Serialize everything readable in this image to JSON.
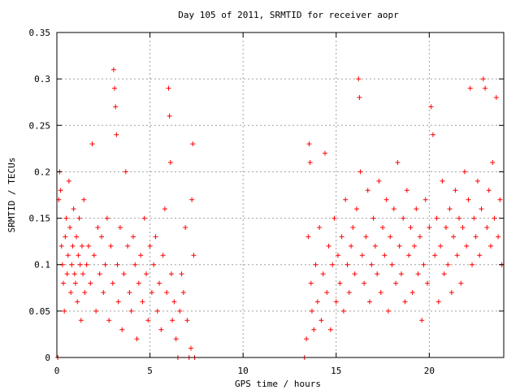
{
  "chart_data": {
    "type": "scatter",
    "title": "Day 105 of 2011, SRMTID for receiver aopr",
    "xlabel": "GPS time / hours",
    "ylabel": "SRMTID / TECUs",
    "xlim": [
      0,
      24
    ],
    "ylim": [
      0,
      0.35
    ],
    "xticks": [
      0,
      5,
      10,
      15,
      20
    ],
    "yticks": [
      0,
      0.05,
      0.1,
      0.15,
      0.2,
      0.25,
      0.3,
      0.35
    ],
    "ytick_labels": [
      "0",
      "0.05",
      "0.1",
      "0.15",
      "0.2",
      "0.25",
      "0.3",
      "0.35"
    ],
    "xtick_labels": [
      "0",
      "5",
      "10",
      "15",
      "20"
    ],
    "grid": true,
    "marker": "+",
    "color": "#ff0000",
    "series": [
      {
        "points": [
          [
            0.05,
            0.0
          ],
          [
            0.1,
            0.17
          ],
          [
            0.15,
            0.2
          ],
          [
            0.2,
            0.18
          ],
          [
            0.25,
            0.12
          ],
          [
            0.3,
            0.1
          ],
          [
            0.35,
            0.08
          ],
          [
            0.4,
            0.05
          ],
          [
            0.45,
            0.13
          ],
          [
            0.5,
            0.15
          ],
          [
            0.55,
            0.09
          ],
          [
            0.6,
            0.11
          ],
          [
            0.65,
            0.19
          ],
          [
            0.7,
            0.14
          ],
          [
            0.75,
            0.07
          ],
          [
            0.8,
            0.1
          ],
          [
            0.85,
            0.12
          ],
          [
            0.9,
            0.16
          ],
          [
            0.95,
            0.09
          ],
          [
            1.0,
            0.08
          ],
          [
            1.05,
            0.13
          ],
          [
            1.1,
            0.06
          ],
          [
            1.15,
            0.11
          ],
          [
            1.2,
            0.15
          ],
          [
            1.25,
            0.1
          ],
          [
            1.3,
            0.04
          ],
          [
            1.35,
            0.12
          ],
          [
            1.4,
            0.09
          ],
          [
            1.45,
            0.17
          ],
          [
            1.5,
            0.07
          ],
          [
            1.6,
            0.1
          ],
          [
            1.7,
            0.12
          ],
          [
            1.8,
            0.08
          ],
          [
            1.9,
            0.23
          ],
          [
            2.0,
            0.11
          ],
          [
            2.1,
            0.05
          ],
          [
            2.2,
            0.14
          ],
          [
            2.3,
            0.09
          ],
          [
            2.4,
            0.13
          ],
          [
            2.5,
            0.07
          ],
          [
            2.6,
            0.1
          ],
          [
            2.7,
            0.15
          ],
          [
            2.8,
            0.04
          ],
          [
            2.9,
            0.12
          ],
          [
            3.0,
            0.08
          ],
          [
            3.05,
            0.31
          ],
          [
            3.1,
            0.29
          ],
          [
            3.15,
            0.27
          ],
          [
            3.2,
            0.24
          ],
          [
            3.25,
            0.1
          ],
          [
            3.3,
            0.06
          ],
          [
            3.4,
            0.14
          ],
          [
            3.5,
            0.03
          ],
          [
            3.6,
            0.09
          ],
          [
            3.7,
            0.2
          ],
          [
            3.8,
            0.12
          ],
          [
            3.9,
            0.07
          ],
          [
            4.0,
            0.05
          ],
          [
            4.1,
            0.13
          ],
          [
            4.2,
            0.1
          ],
          [
            4.3,
            0.02
          ],
          [
            4.4,
            0.08
          ],
          [
            4.5,
            0.11
          ],
          [
            4.6,
            0.06
          ],
          [
            4.7,
            0.15
          ],
          [
            4.8,
            0.09
          ],
          [
            4.9,
            0.04
          ],
          [
            5.0,
            0.12
          ],
          [
            5.1,
            0.07
          ],
          [
            5.2,
            0.1
          ],
          [
            5.3,
            0.13
          ],
          [
            5.4,
            0.05
          ],
          [
            5.5,
            0.08
          ],
          [
            5.6,
            0.03
          ],
          [
            5.7,
            0.11
          ],
          [
            5.8,
            0.16
          ],
          [
            5.9,
            0.07
          ],
          [
            6.0,
            0.29
          ],
          [
            6.05,
            0.26
          ],
          [
            6.1,
            0.21
          ],
          [
            6.15,
            0.09
          ],
          [
            6.2,
            0.04
          ],
          [
            6.3,
            0.06
          ],
          [
            6.4,
            0.02
          ],
          [
            6.5,
            0.0
          ],
          [
            6.6,
            0.05
          ],
          [
            6.7,
            0.09
          ],
          [
            6.8,
            0.07
          ],
          [
            6.9,
            0.14
          ],
          [
            7.0,
            0.04
          ],
          [
            7.1,
            0.0
          ],
          [
            7.2,
            0.01
          ],
          [
            7.25,
            0.17
          ],
          [
            7.3,
            0.23
          ],
          [
            7.35,
            0.11
          ],
          [
            7.4,
            0.0
          ],
          [
            13.3,
            0.0
          ],
          [
            13.4,
            0.02
          ],
          [
            13.5,
            0.13
          ],
          [
            13.55,
            0.23
          ],
          [
            13.6,
            0.21
          ],
          [
            13.65,
            0.08
          ],
          [
            13.7,
            0.05
          ],
          [
            13.8,
            0.03
          ],
          [
            13.9,
            0.1
          ],
          [
            14.0,
            0.06
          ],
          [
            14.1,
            0.14
          ],
          [
            14.2,
            0.04
          ],
          [
            14.3,
            0.09
          ],
          [
            14.4,
            0.22
          ],
          [
            14.5,
            0.07
          ],
          [
            14.6,
            0.12
          ],
          [
            14.7,
            0.03
          ],
          [
            14.8,
            0.1
          ],
          [
            14.9,
            0.15
          ],
          [
            15.0,
            0.06
          ],
          [
            15.1,
            0.11
          ],
          [
            15.2,
            0.08
          ],
          [
            15.3,
            0.13
          ],
          [
            15.4,
            0.05
          ],
          [
            15.5,
            0.17
          ],
          [
            15.6,
            0.1
          ],
          [
            15.7,
            0.07
          ],
          [
            15.8,
            0.12
          ],
          [
            15.9,
            0.14
          ],
          [
            16.0,
            0.09
          ],
          [
            16.1,
            0.16
          ],
          [
            16.2,
            0.3
          ],
          [
            16.25,
            0.28
          ],
          [
            16.3,
            0.2
          ],
          [
            16.4,
            0.11
          ],
          [
            16.5,
            0.08
          ],
          [
            16.6,
            0.13
          ],
          [
            16.7,
            0.18
          ],
          [
            16.8,
            0.06
          ],
          [
            16.9,
            0.1
          ],
          [
            17.0,
            0.15
          ],
          [
            17.1,
            0.12
          ],
          [
            17.2,
            0.09
          ],
          [
            17.3,
            0.19
          ],
          [
            17.4,
            0.07
          ],
          [
            17.5,
            0.14
          ],
          [
            17.6,
            0.11
          ],
          [
            17.7,
            0.17
          ],
          [
            17.8,
            0.05
          ],
          [
            17.9,
            0.13
          ],
          [
            18.0,
            0.1
          ],
          [
            18.1,
            0.16
          ],
          [
            18.2,
            0.08
          ],
          [
            18.3,
            0.21
          ],
          [
            18.4,
            0.12
          ],
          [
            18.5,
            0.09
          ],
          [
            18.6,
            0.15
          ],
          [
            18.7,
            0.06
          ],
          [
            18.8,
            0.18
          ],
          [
            18.9,
            0.11
          ],
          [
            19.0,
            0.14
          ],
          [
            19.1,
            0.07
          ],
          [
            19.2,
            0.12
          ],
          [
            19.3,
            0.16
          ],
          [
            19.4,
            0.09
          ],
          [
            19.5,
            0.13
          ],
          [
            19.6,
            0.04
          ],
          [
            19.7,
            0.1
          ],
          [
            19.8,
            0.17
          ],
          [
            19.9,
            0.08
          ],
          [
            20.0,
            0.14
          ],
          [
            20.1,
            0.27
          ],
          [
            20.2,
            0.24
          ],
          [
            20.3,
            0.11
          ],
          [
            20.4,
            0.15
          ],
          [
            20.5,
            0.06
          ],
          [
            20.6,
            0.12
          ],
          [
            20.7,
            0.19
          ],
          [
            20.8,
            0.09
          ],
          [
            20.9,
            0.14
          ],
          [
            21.0,
            0.1
          ],
          [
            21.1,
            0.16
          ],
          [
            21.2,
            0.07
          ],
          [
            21.3,
            0.13
          ],
          [
            21.4,
            0.18
          ],
          [
            21.5,
            0.11
          ],
          [
            21.6,
            0.15
          ],
          [
            21.7,
            0.08
          ],
          [
            21.8,
            0.14
          ],
          [
            21.9,
            0.2
          ],
          [
            22.0,
            0.12
          ],
          [
            22.1,
            0.17
          ],
          [
            22.2,
            0.29
          ],
          [
            22.3,
            0.1
          ],
          [
            22.4,
            0.15
          ],
          [
            22.5,
            0.13
          ],
          [
            22.6,
            0.19
          ],
          [
            22.7,
            0.11
          ],
          [
            22.8,
            0.16
          ],
          [
            22.9,
            0.3
          ],
          [
            23.0,
            0.29
          ],
          [
            23.1,
            0.14
          ],
          [
            23.2,
            0.18
          ],
          [
            23.3,
            0.12
          ],
          [
            23.4,
            0.21
          ],
          [
            23.5,
            0.15
          ],
          [
            23.6,
            0.28
          ],
          [
            23.7,
            0.13
          ],
          [
            23.8,
            0.17
          ],
          [
            23.9,
            0.1
          ]
        ]
      }
    ]
  }
}
